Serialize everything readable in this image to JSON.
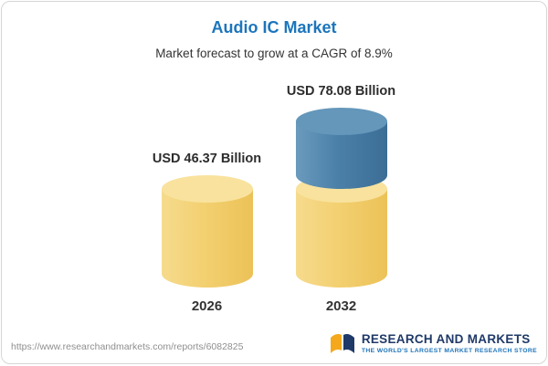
{
  "chart_data": {
    "type": "bar",
    "bar_style": "cylinder-3d-stacked",
    "title": "Audio IC Market",
    "subtitle": "Market forecast to grow at a CAGR of 8.9%",
    "categories": [
      "2026",
      "2032"
    ],
    "values": [
      46.37,
      78.08
    ],
    "value_labels": [
      "USD 46.37 Billion",
      "USD 78.08 Billion"
    ],
    "unit": "USD Billion",
    "ylim": [
      0,
      80
    ],
    "grid": false,
    "legend": null,
    "stacked_segments_2032": {
      "base": 46.37,
      "growth": 31.71
    },
    "colors": {
      "base_segment": "#F3D071",
      "growth_segment": "#4B80A8",
      "title": "#1C75BC",
      "label_text": "#2d2d2d"
    }
  },
  "footer": {
    "url": "https://www.researchandmarkets.com/reports/6082825",
    "brand": {
      "name": "RESEARCH AND MARKETS",
      "tagline": "THE WORLD'S LARGEST MARKET RESEARCH STORE",
      "logo_icon": "open-book-logo",
      "name_color": "#1F3968",
      "tagline_color": "#2076BC"
    }
  }
}
